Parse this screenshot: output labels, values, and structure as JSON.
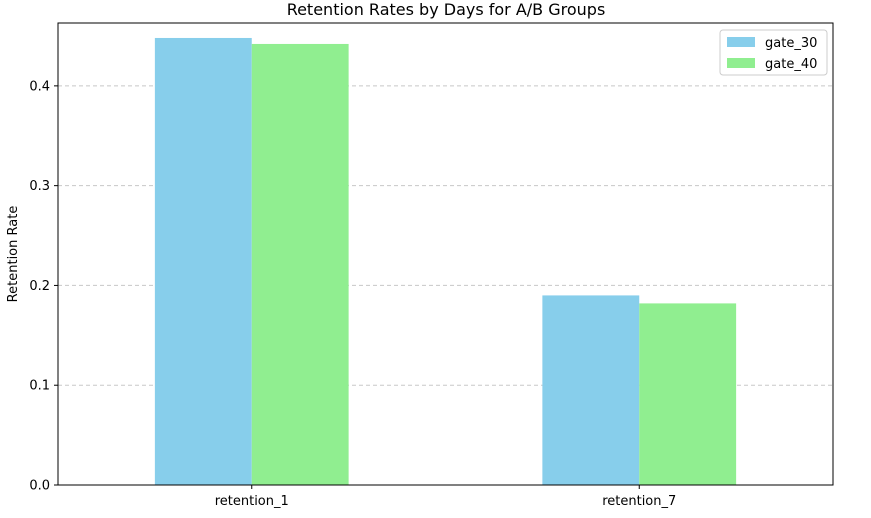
{
  "chart_data": {
    "type": "bar",
    "title": "Retention Rates by Days for A/B Groups",
    "xlabel": "",
    "ylabel": "Retention Rate",
    "categories": [
      "retention_1",
      "retention_7"
    ],
    "series": [
      {
        "name": "gate_30",
        "values": [
          0.448,
          0.19
        ],
        "color": "#87ceeb"
      },
      {
        "name": "gate_40",
        "values": [
          0.442,
          0.182
        ],
        "color": "#90ee90"
      }
    ],
    "ylim": [
      0,
      0.463
    ],
    "yticks": [
      0.0,
      0.1,
      0.2,
      0.3,
      0.4
    ],
    "ytick_labels": [
      "0.0",
      "0.1",
      "0.2",
      "0.3",
      "0.4"
    ],
    "grid": {
      "y": true,
      "x": false,
      "style": "dashed",
      "color": "#c8c8c8"
    },
    "legend": {
      "position": "top-right"
    }
  }
}
